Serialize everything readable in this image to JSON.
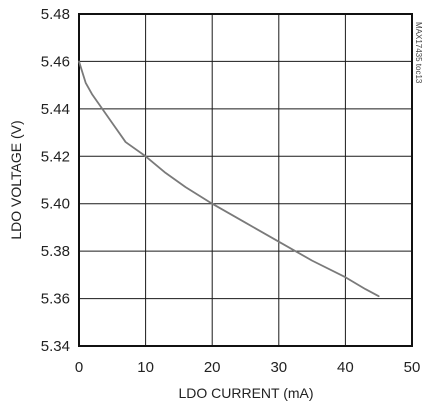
{
  "chart_data": {
    "type": "line",
    "xlabel": "LDO CURRENT (mA)",
    "ylabel": "LDO VOLTAGE (V)",
    "xlim": [
      0,
      50
    ],
    "ylim": [
      5.34,
      5.48
    ],
    "x_ticks": [
      0,
      10,
      20,
      30,
      40,
      50
    ],
    "y_ticks": [
      5.34,
      5.36,
      5.38,
      5.4,
      5.42,
      5.44,
      5.46,
      5.48
    ],
    "x_tick_labels": [
      "0",
      "10",
      "20",
      "30",
      "40",
      "50"
    ],
    "y_tick_labels": [
      "5.34",
      "5.36",
      "5.38",
      "5.40",
      "5.42",
      "5.44",
      "5.46",
      "5.48"
    ],
    "grid": true,
    "annotation": "MAX17435 toc13",
    "series": [
      {
        "color": "#7a7a7a",
        "x": [
          0,
          1,
          2,
          3,
          5,
          7,
          10,
          13,
          16,
          20,
          25,
          30,
          35,
          40,
          43,
          45
        ],
        "y": [
          5.46,
          5.451,
          5.446,
          5.442,
          5.434,
          5.426,
          5.42,
          5.413,
          5.407,
          5.4,
          5.392,
          5.384,
          5.376,
          5.369,
          5.364,
          5.361
        ]
      }
    ]
  }
}
